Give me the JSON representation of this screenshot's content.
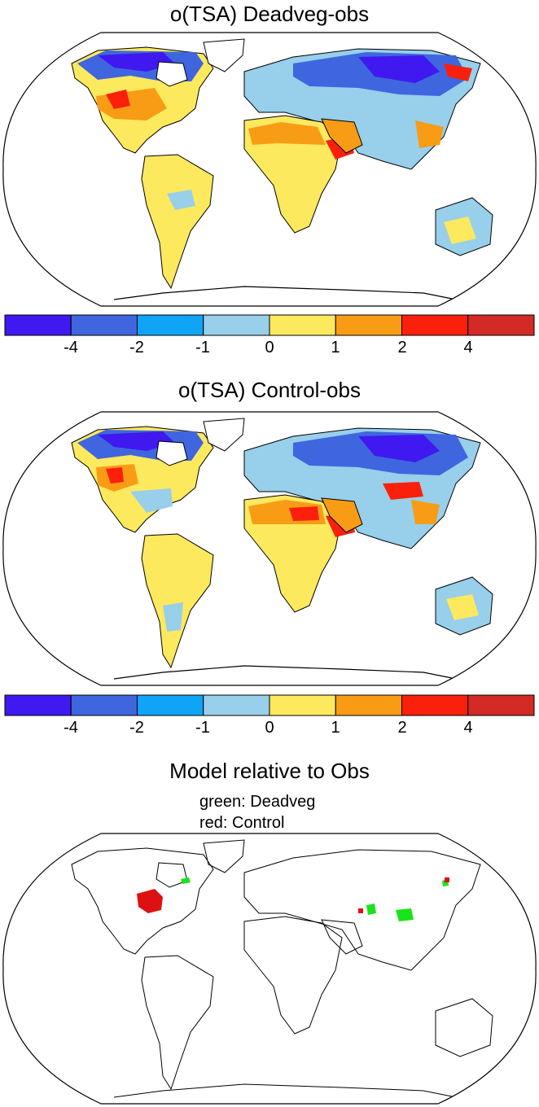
{
  "panels": [
    {
      "title": "o(TSA) Deadveg-obs"
    },
    {
      "title": "o(TSA) Control-obs"
    },
    {
      "title": "Model relative to Obs",
      "subtitle_lines": [
        "green: Deadveg",
        "red: Control"
      ]
    }
  ],
  "colorbar": {
    "labels": [
      "-4",
      "-2",
      "-1",
      "0",
      "1",
      "2",
      "4"
    ],
    "colors": [
      "#3f19ef",
      "#3f66de",
      "#10a4f6",
      "#98cfea",
      "#fde95e",
      "#f99c15",
      "#fb200b",
      "#d22a25"
    ]
  },
  "legend_colors": {
    "deadveg": "#19e319",
    "control": "#dd1111"
  }
}
